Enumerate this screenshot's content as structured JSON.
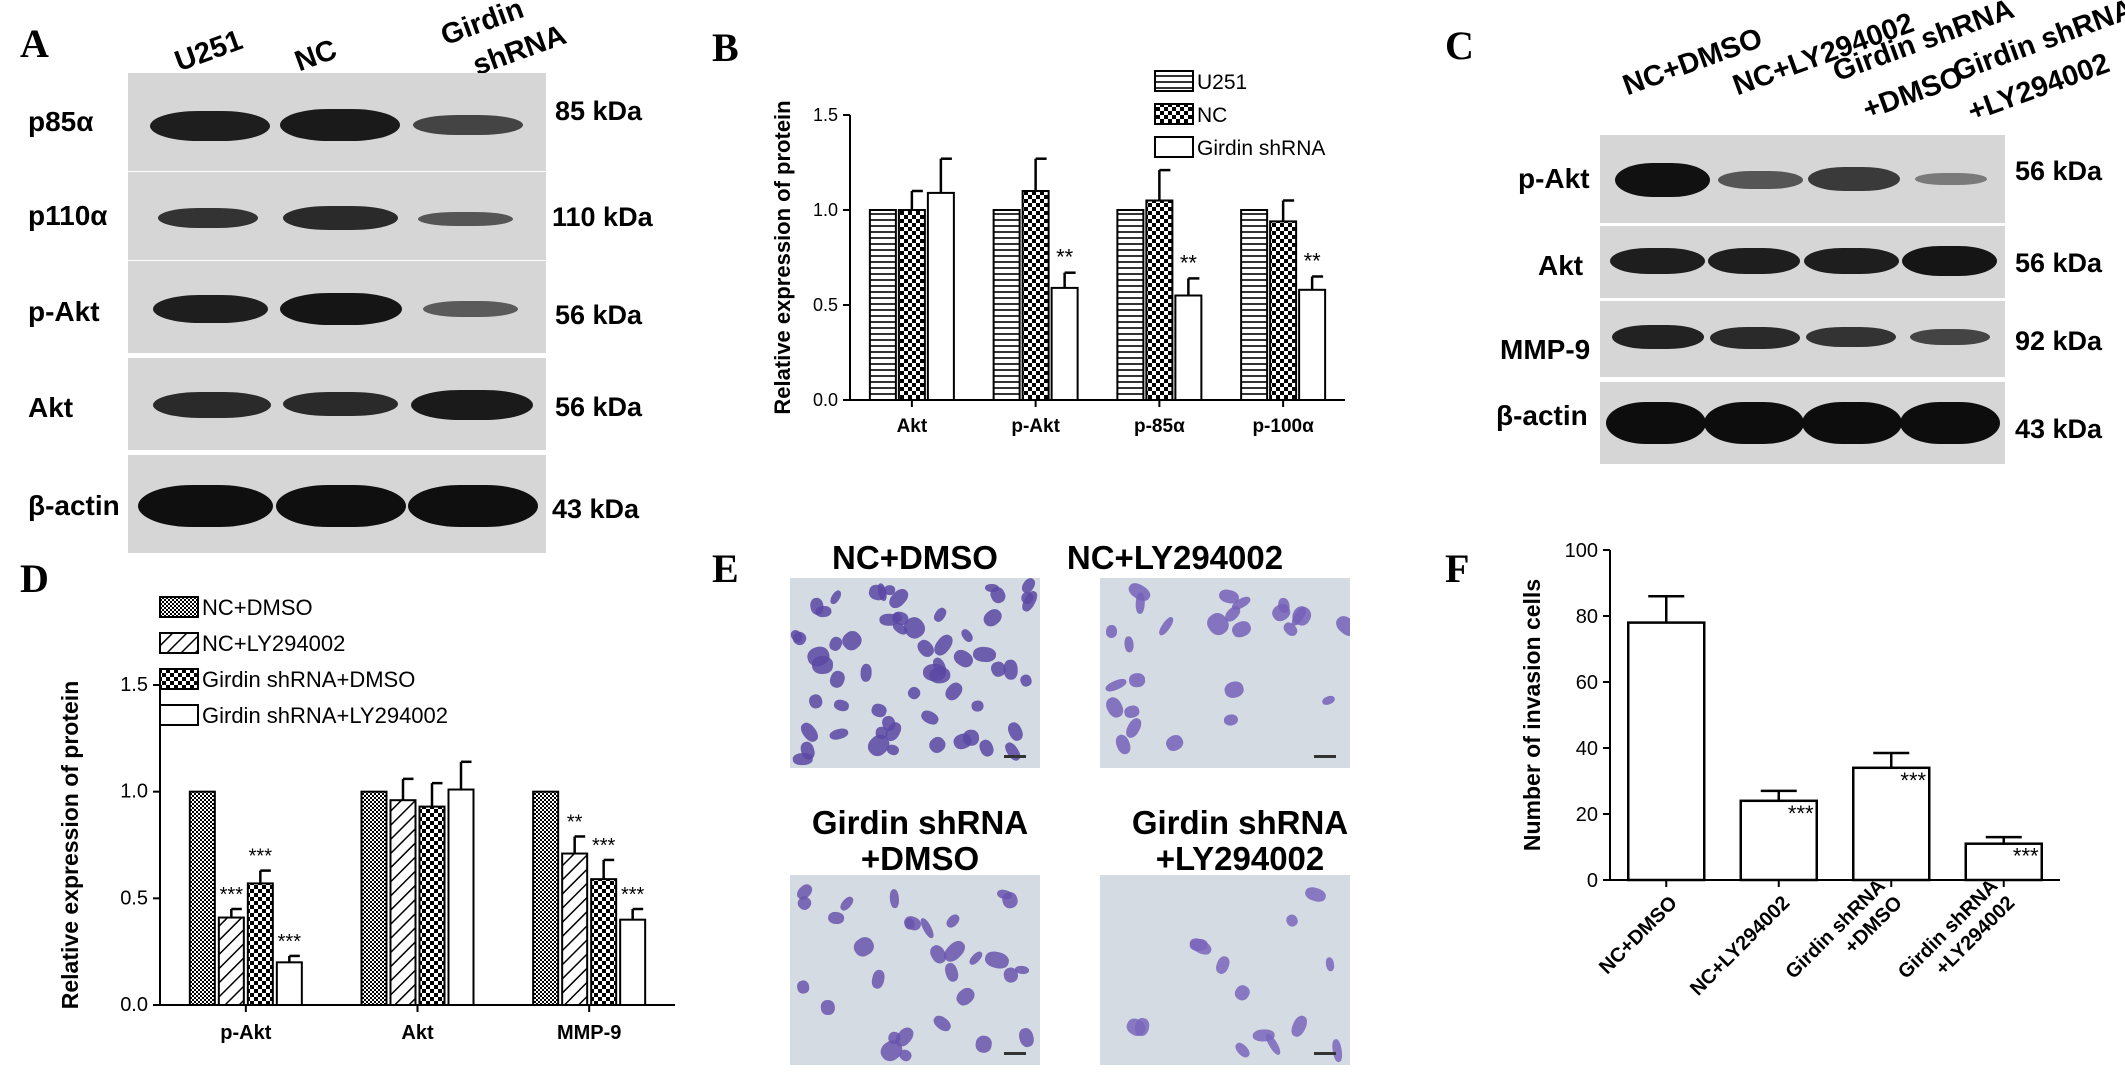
{
  "panel_letters": {
    "a": "A",
    "b": "B",
    "c": "C",
    "d": "D",
    "e": "E",
    "f": "F"
  },
  "panel_a": {
    "lanes": [
      "U251",
      "NC",
      "Girdin\nshRNA"
    ],
    "lane1": "U251",
    "lane2": "NC",
    "lane3a": "Girdin",
    "lane3b": "shRNA",
    "rows": [
      {
        "label": "p85α",
        "kda": "85 kDa"
      },
      {
        "label": "p110α",
        "kda": "110 kDa"
      },
      {
        "label": "p-Akt",
        "kda": "56 kDa"
      },
      {
        "label": "Akt",
        "kda": "56 kDa"
      },
      {
        "label": "β-actin",
        "kda": "43 kDa"
      }
    ]
  },
  "panel_c": {
    "lane1": "NC+DMSO",
    "lane2": "NC+LY294002",
    "lane3a": "Girdin shRNA",
    "lane3b": "+DMSO",
    "lane4a": "Girdin shRNA",
    "lane4b": "+LY294002",
    "rows": [
      {
        "label": "p-Akt",
        "kda": "56 kDa"
      },
      {
        "label": "Akt",
        "kda": "56 kDa"
      },
      {
        "label": "MMP-9",
        "kda": "92 kDa"
      },
      {
        "label": "β-actin",
        "kda": "43 kDa"
      }
    ]
  },
  "panel_e": {
    "t1": "NC+DMSO",
    "t2": "NC+LY294002",
    "t3a": "Girdin shRNA",
    "t3b": "+DMSO",
    "t4a": "Girdin shRNA",
    "t4b": "+LY294002"
  },
  "chart_data": [
    {
      "panel": "B",
      "type": "bar",
      "categories": [
        "Akt",
        "p-Akt",
        "p-85α",
        "p-100α"
      ],
      "series": [
        {
          "name": "U251",
          "values": [
            1.0,
            1.0,
            1.0,
            1.0
          ],
          "errors": [
            0,
            0,
            0,
            0
          ],
          "sig": [
            "",
            "",
            "",
            ""
          ]
        },
        {
          "name": "NC",
          "values": [
            1.0,
            1.1,
            1.05,
            0.94
          ],
          "errors": [
            0.1,
            0.17,
            0.16,
            0.11
          ],
          "sig": [
            "",
            "",
            "",
            ""
          ]
        },
        {
          "name": "Girdin shRNA",
          "values": [
            1.09,
            0.59,
            0.55,
            0.58
          ],
          "errors": [
            0.18,
            0.08,
            0.09,
            0.07
          ],
          "sig": [
            "",
            "**",
            "**",
            "**"
          ]
        }
      ],
      "ylabel": "Relative expression of protein",
      "ylim": [
        0,
        1.5
      ],
      "yticks": [
        "0.0",
        "0.5",
        "1.0",
        "1.5"
      ],
      "legend": "top-right"
    },
    {
      "panel": "D",
      "type": "bar",
      "categories": [
        "p-Akt",
        "Akt",
        "MMP-9"
      ],
      "series": [
        {
          "name": "NC+DMSO",
          "values": [
            1.0,
            1.0,
            1.0
          ],
          "errors": [
            0,
            0,
            0
          ],
          "sig": [
            "",
            "",
            ""
          ]
        },
        {
          "name": "NC+LY294002",
          "values": [
            0.41,
            0.96,
            0.71
          ],
          "errors": [
            0.04,
            0.1,
            0.08
          ],
          "sig": [
            "***",
            "",
            "**"
          ]
        },
        {
          "name": "Girdin shRNA+DMSO",
          "values": [
            0.57,
            0.93,
            0.59
          ],
          "errors": [
            0.06,
            0.11,
            0.09
          ],
          "sig": [
            "***",
            "",
            "***"
          ]
        },
        {
          "name": "Girdin shRNA+LY294002",
          "values": [
            0.2,
            1.01,
            0.4
          ],
          "errors": [
            0.03,
            0.13,
            0.05
          ],
          "sig": [
            "***",
            "",
            "***"
          ]
        }
      ],
      "ylabel": "Relative expression of protein",
      "ylim": [
        0,
        1.5
      ],
      "yticks": [
        "0.0",
        "0.5",
        "1.0",
        "1.5"
      ],
      "legend": "top-left"
    },
    {
      "panel": "F",
      "type": "bar",
      "categories": [
        "NC+DMSO",
        "NC+LY294002",
        "Girdin shRNA\n+DMSO",
        "Girdin shRNA\n+LY294002"
      ],
      "values": [
        78,
        24,
        34,
        11
      ],
      "errors": [
        8,
        3,
        4.5,
        2
      ],
      "sig": [
        "",
        "***",
        "***",
        "***"
      ],
      "ylabel": "Number of invasion cells",
      "ylim": [
        0,
        100
      ],
      "yticks": [
        "0",
        "20",
        "40",
        "60",
        "80",
        "100"
      ]
    }
  ]
}
